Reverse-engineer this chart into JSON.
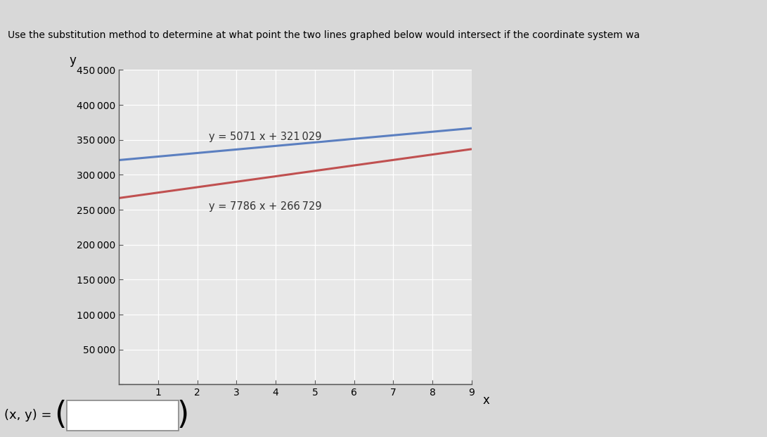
{
  "line1_slope": 5071,
  "line1_intercept": 321029,
  "line1_label": "y = 5071 x + 321 029",
  "line1_color": "#5b7fc0",
  "line2_slope": 7786,
  "line2_intercept": 266729,
  "line2_label": "y = 7786 x + 266 729",
  "line2_color": "#c05050",
  "x_min": 0,
  "x_max": 9,
  "y_min": 0,
  "y_max": 450000,
  "y_tick_step": 50000,
  "x_ticks": [
    1,
    2,
    3,
    4,
    5,
    6,
    7,
    8,
    9
  ],
  "xlabel": "x",
  "ylabel": "y",
  "plot_bg": "#e8e8e8",
  "grid_color": "#ffffff",
  "page_bg": "#d4d4d4",
  "title_text": "Use the substitution method to determine at what point the two lines graphed below would intersect if the coordinate system wa",
  "panel_bg": "#d8d8d8"
}
